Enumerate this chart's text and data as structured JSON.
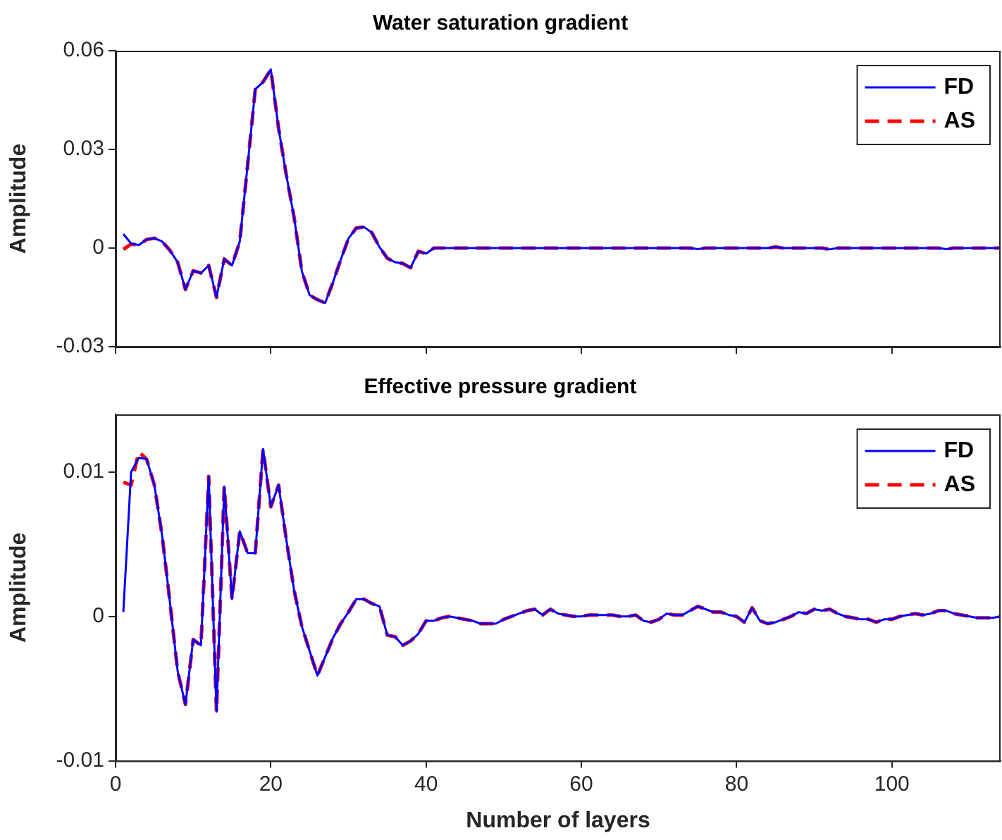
{
  "chart_data": [
    {
      "type": "line",
      "title": "Water saturation gradient",
      "ylabel": "Amplitude",
      "x": [
        1,
        2,
        3,
        4,
        5,
        6,
        7,
        8,
        9,
        10,
        11,
        12,
        13,
        14,
        15,
        16,
        17,
        18,
        19,
        20,
        21,
        22,
        23,
        24,
        25,
        26,
        27,
        28,
        29,
        30,
        31,
        32,
        33,
        34,
        35,
        36,
        37,
        38,
        39,
        40,
        41,
        42,
        43,
        44,
        45,
        46,
        47,
        48,
        49,
        50,
        51,
        52,
        53,
        54,
        55,
        56,
        57,
        58,
        59,
        60,
        61,
        62,
        63,
        64,
        65,
        66,
        67,
        68,
        69,
        70,
        71,
        72,
        73,
        74,
        75,
        76,
        77,
        78,
        79,
        80,
        81,
        82,
        83,
        84,
        85,
        86,
        87,
        88,
        89,
        90,
        91,
        92,
        93,
        94,
        95,
        96,
        97,
        98,
        99,
        100,
        101,
        102,
        103,
        104,
        105,
        106,
        107,
        108,
        109,
        110,
        111,
        112,
        113,
        114
      ],
      "series": [
        {
          "name": "FD",
          "color": "#0000ff",
          "line_style": "solid",
          "values": [
            0.0043,
            0.0014,
            0.0009,
            0.0026,
            0.003,
            0.002,
            -0.0007,
            -0.0043,
            -0.0126,
            -0.0069,
            -0.0076,
            -0.0053,
            -0.015,
            -0.0033,
            -0.0053,
            0.002,
            0.025,
            0.0483,
            0.0505,
            0.0543,
            0.0364,
            0.0221,
            0.0093,
            -0.0071,
            -0.0143,
            -0.0157,
            -0.0167,
            -0.0104,
            -0.0036,
            0.0029,
            0.0061,
            0.0064,
            0.0047,
            0.0003,
            -0.0031,
            -0.0043,
            -0.0047,
            -0.006,
            -0.001,
            -0.0017,
            0,
            0,
            0,
            0,
            0,
            0,
            0,
            0,
            0,
            0,
            0,
            0,
            0,
            0,
            0,
            0,
            0,
            0,
            0,
            0,
            0,
            0,
            0,
            0,
            0,
            0,
            0,
            0,
            0,
            0,
            0,
            0,
            0,
            0,
            -0.0003,
            0,
            0,
            0,
            0,
            0,
            0,
            0,
            0,
            0,
            0.0003,
            0,
            0,
            0,
            0,
            0,
            0,
            -0.0004,
            0,
            0,
            0,
            0,
            0,
            0,
            0,
            0,
            0,
            0,
            0,
            0,
            0,
            0,
            -0.0003,
            0,
            0,
            0,
            0,
            0,
            0,
            0
          ]
        },
        {
          "name": "AS",
          "color": "#ff0000",
          "line_style": "dashed",
          "values": [
            -0.0004,
            0.0012,
            0.0009,
            0.0026,
            0.003,
            0.002,
            -0.0007,
            -0.0043,
            -0.0126,
            -0.0069,
            -0.0076,
            -0.0053,
            -0.015,
            -0.0033,
            -0.0053,
            0.002,
            0.025,
            0.0483,
            0.0505,
            0.0543,
            0.0364,
            0.0221,
            0.0093,
            -0.0071,
            -0.0143,
            -0.0157,
            -0.0167,
            -0.0104,
            -0.0036,
            0.0029,
            0.0061,
            0.0064,
            0.0047,
            0.0003,
            -0.0031,
            -0.0043,
            -0.0047,
            -0.006,
            -0.001,
            -0.0017,
            0,
            0,
            0,
            0,
            0,
            0,
            0,
            0,
            0,
            0,
            0,
            0,
            0,
            0,
            0,
            0,
            0,
            0,
            0,
            0,
            0,
            0,
            0,
            0,
            0,
            0,
            0,
            0,
            0,
            0,
            0,
            0,
            0,
            0,
            -0.0003,
            0,
            0,
            0,
            0,
            0,
            0,
            0,
            0,
            0,
            0.0003,
            0,
            0,
            0,
            0,
            0,
            0,
            -0.0004,
            0,
            0,
            0,
            0,
            0,
            0,
            0,
            0,
            0,
            0,
            0,
            0,
            0,
            0,
            -0.0003,
            0,
            0,
            0,
            0,
            0,
            0,
            0
          ]
        }
      ],
      "xlim": [
        0,
        114
      ],
      "xticks": [
        0,
        20,
        40,
        60,
        80,
        100
      ],
      "ylim": [
        -0.03,
        0.06
      ],
      "yticks": [
        -0.03,
        0,
        0.03,
        0.06
      ],
      "tick_labels": "y",
      "grid": false,
      "legend": "top right",
      "marker": "none"
    },
    {
      "type": "line",
      "title": "Effective pressure gradient",
      "xlabel": "Number of layers",
      "ylabel": "Amplitude",
      "x": [
        1,
        2,
        3,
        4,
        5,
        6,
        7,
        8,
        9,
        10,
        11,
        12,
        13,
        14,
        15,
        16,
        17,
        18,
        19,
        20,
        21,
        22,
        23,
        24,
        25,
        26,
        27,
        28,
        29,
        30,
        31,
        32,
        33,
        34,
        35,
        36,
        37,
        38,
        39,
        40,
        41,
        42,
        43,
        44,
        45,
        46,
        47,
        48,
        49,
        50,
        51,
        52,
        53,
        54,
        55,
        56,
        57,
        58,
        59,
        60,
        61,
        62,
        63,
        64,
        65,
        66,
        67,
        68,
        69,
        70,
        71,
        72,
        73,
        74,
        75,
        76,
        77,
        78,
        79,
        80,
        81,
        82,
        83,
        84,
        85,
        86,
        87,
        88,
        89,
        90,
        91,
        92,
        93,
        94,
        95,
        96,
        97,
        98,
        99,
        100,
        101,
        102,
        103,
        104,
        105,
        106,
        107,
        108,
        109,
        110,
        111,
        112,
        113,
        114
      ],
      "series": [
        {
          "name": "FD",
          "color": "#0000ff",
          "line_style": "solid",
          "values": [
            0.0003,
            0.01,
            0.011,
            0.0109,
            0.0091,
            0.0056,
            0.001,
            -0.0038,
            -0.0061,
            -0.0016,
            -0.002,
            0.0097,
            -0.0066,
            0.009,
            0.0012,
            0.0059,
            0.0044,
            0.0044,
            0.0116,
            0.0076,
            0.0091,
            0.0053,
            0.0018,
            -0.0007,
            -0.0024,
            -0.0041,
            -0.0028,
            -0.0015,
            -0.0005,
            0.0003,
            0.0012,
            0.0012,
            0.0009,
            0.0007,
            -0.0013,
            -0.0014,
            -0.002,
            -0.0017,
            -0.0012,
            -0.0003,
            -0.0003,
            -0.0001,
            0,
            -0.0001,
            -0.0002,
            -0.0003,
            -0.0005,
            -0.0005,
            -0.0005,
            -0.0002,
            0,
            0.0002,
            0.0004,
            0.0005,
            0.0001,
            0.0005,
            0.0002,
            0.0001,
            0,
            0,
            0.0001,
            0.0001,
            0.0001,
            0.0001,
            0,
            0,
            0.0001,
            -0.0003,
            -0.0004,
            -0.0002,
            0.0002,
            0.0001,
            0.0001,
            0.0004,
            0.0007,
            0.0005,
            0.0003,
            0.0003,
            0.0001,
            0,
            -0.0004,
            0.0006,
            -0.0003,
            -0.0005,
            -0.0004,
            -0.0002,
            0,
            0.0003,
            0.0002,
            0.0005,
            0.0004,
            0.0005,
            0.0002,
            0,
            -0.0001,
            -0.0002,
            -0.0002,
            -0.0004,
            -0.0002,
            -0.0002,
            0,
            0.0001,
            0.0002,
            0.0001,
            0.0002,
            0.0004,
            0.0004,
            0.0002,
            0.0001,
            0,
            -0.0001,
            -0.0001,
            -0.0001,
            0
          ]
        },
        {
          "name": "AS",
          "color": "#ff0000",
          "line_style": "dashed",
          "values": [
            0.0093,
            0.0091,
            0.0114,
            0.0109,
            0.0091,
            0.0056,
            0.001,
            -0.0038,
            -0.0061,
            -0.0016,
            -0.002,
            0.0097,
            -0.0066,
            0.009,
            0.0012,
            0.0059,
            0.0044,
            0.0044,
            0.0116,
            0.0076,
            0.0091,
            0.0053,
            0.0018,
            -0.0007,
            -0.0024,
            -0.0041,
            -0.0028,
            -0.0015,
            -0.0005,
            0.0003,
            0.0012,
            0.0012,
            0.0009,
            0.0007,
            -0.0013,
            -0.0014,
            -0.002,
            -0.0017,
            -0.0012,
            -0.0003,
            -0.0003,
            -0.0001,
            0,
            -0.0001,
            -0.0002,
            -0.0003,
            -0.0005,
            -0.0005,
            -0.0005,
            -0.0002,
            0,
            0.0002,
            0.0004,
            0.0005,
            0.0001,
            0.0005,
            0.0002,
            0.0001,
            0,
            0,
            0.0001,
            0.0001,
            0.0001,
            0.0001,
            0,
            0,
            0.0001,
            -0.0003,
            -0.0004,
            -0.0002,
            0.0002,
            0.0001,
            0.0001,
            0.0004,
            0.0007,
            0.0005,
            0.0003,
            0.0003,
            0.0001,
            0,
            -0.0004,
            0.0006,
            -0.0003,
            -0.0005,
            -0.0004,
            -0.0002,
            0,
            0.0003,
            0.0002,
            0.0005,
            0.0004,
            0.0005,
            0.0002,
            0,
            -0.0001,
            -0.0002,
            -0.0002,
            -0.0004,
            -0.0002,
            -0.0002,
            0,
            0.0001,
            0.0002,
            0.0001,
            0.0002,
            0.0004,
            0.0004,
            0.0002,
            0.0001,
            0,
            -0.0001,
            -0.0001,
            -0.0001,
            0
          ]
        }
      ],
      "xlim": [
        0,
        114
      ],
      "xticks": [
        0,
        20,
        40,
        60,
        80,
        100
      ],
      "ylim": [
        -0.01,
        0.014
      ],
      "yticks": [
        -0.01,
        0,
        0.01
      ],
      "grid": false,
      "legend": "top right",
      "marker": "none"
    }
  ]
}
